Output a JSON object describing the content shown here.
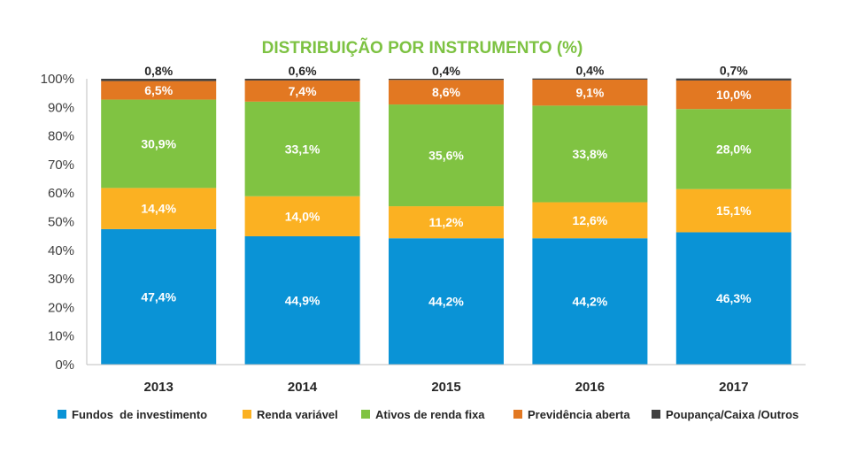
{
  "chart_data": {
    "type": "bar",
    "stacked": true,
    "title": "DISTRIBUIÇÃO POR INSTRUMENTO (%)",
    "title_color": "#7DC242",
    "categories": [
      "2013",
      "2014",
      "2015",
      "2016",
      "2017"
    ],
    "y_ticks": [
      "0%",
      "10%",
      "20%",
      "30%",
      "40%",
      "50%",
      "60%",
      "70%",
      "80%",
      "90%",
      "100%"
    ],
    "ylim": [
      0,
      100
    ],
    "grid": false,
    "legend_position": "bottom",
    "series": [
      {
        "name": "Fundos  de investimento",
        "color": "#0A93D6",
        "label_color": "#FFFFFF",
        "values": [
          47.4,
          44.9,
          44.2,
          44.2,
          46.3
        ],
        "labels": [
          "47,4%",
          "44,9%",
          "44,2%",
          "44,2%",
          "46,3%"
        ]
      },
      {
        "name": "Renda variável",
        "color": "#FBB122",
        "label_color": "#FFFFFF",
        "values": [
          14.4,
          14.0,
          11.2,
          12.6,
          15.1
        ],
        "labels": [
          "14,4%",
          "14,0%",
          "11,2%",
          "12,6%",
          "15,1%"
        ]
      },
      {
        "name": "Ativos de renda fixa",
        "color": "#80C342",
        "label_color": "#FFFFFF",
        "values": [
          30.9,
          33.1,
          35.6,
          33.8,
          28.0
        ],
        "labels": [
          "30,9%",
          "33,1%",
          "35,6%",
          "33,8%",
          "28,0%"
        ]
      },
      {
        "name": "Previdência aberta",
        "color": "#E27822",
        "label_color": "#FFFFFF",
        "values": [
          6.5,
          7.4,
          8.6,
          9.1,
          10.0
        ],
        "labels": [
          "6,5%",
          "7,4%",
          "8,6%",
          "9,1%",
          "10,0%"
        ]
      },
      {
        "name": "Poupança/Caixa /Outros",
        "color": "#404040",
        "label_color": "#262626",
        "values": [
          0.8,
          0.6,
          0.4,
          0.4,
          0.7
        ],
        "labels": [
          "0,8%",
          "0,6%",
          "0,4%",
          "0,4%",
          "0,7%"
        ]
      }
    ]
  }
}
